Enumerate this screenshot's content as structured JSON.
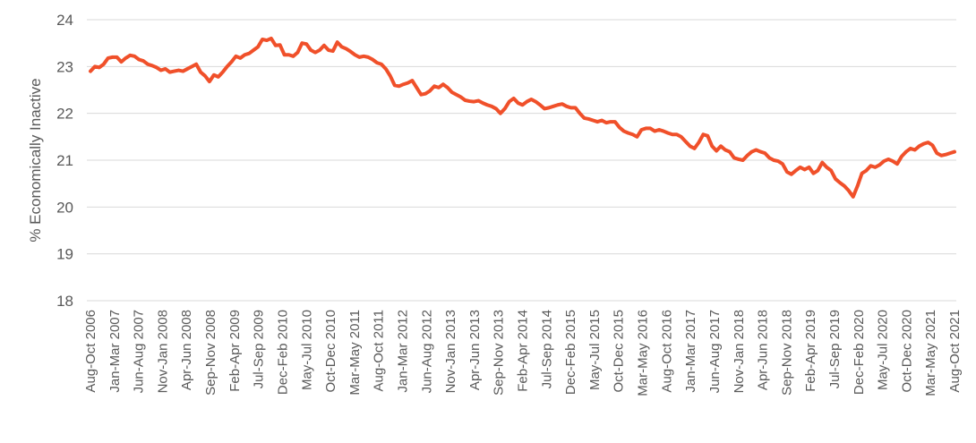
{
  "chart_data": {
    "type": "line",
    "title": "",
    "xlabel": "",
    "ylabel": "% Economically Inactive",
    "ylim": [
      18,
      24
    ],
    "yticks": [
      "18",
      "19",
      "20",
      "21",
      "22",
      "23",
      "24"
    ],
    "grid": true,
    "legend": "none",
    "line_color": "#f0502a",
    "x_tick_labels": [
      "Aug-Oct 2006",
      "Jan-Mar 2007",
      "Jun-Aug 2007",
      "Nov-Jan 2008",
      "Apr-Jun 2008",
      "Sep-Nov 2008",
      "Feb-Apr 2009",
      "Jul-Sep 2009",
      "Dec-Feb 2010",
      "May-Jul 2010",
      "Oct-Dec 2010",
      "Mar-May 2011",
      "Aug-Oct 2011",
      "Jan-Mar 2012",
      "Jun-Aug 2012",
      "Nov-Jan 2013",
      "Apr-Jun 2013",
      "Sep-Nov 2013",
      "Feb-Apr 2014",
      "Jul-Sep 2014",
      "Dec-Feb 2015",
      "May-Jul 2015",
      "Oct-Dec 2015",
      "Mar-May 2016",
      "Aug-Oct 2016",
      "Jan-Mar 2017",
      "Jun-Aug 2017",
      "Nov-Jan 2018",
      "Apr-Jun 2018",
      "Sep-Nov 2018",
      "Feb-Apr 2019",
      "Jul-Sep 2019",
      "Dec-Feb 2020",
      "May-Jul 2020",
      "Oct-Dec 2020",
      "Mar-May 2021",
      "Aug-Oct 2021"
    ],
    "series": [
      {
        "name": "",
        "values": [
          22.9,
          23.0,
          22.98,
          23.05,
          23.18,
          23.2,
          23.2,
          23.1,
          23.18,
          23.24,
          23.22,
          23.15,
          23.12,
          23.05,
          23.02,
          22.98,
          22.92,
          22.95,
          22.88,
          22.9,
          22.92,
          22.9,
          22.95,
          23.0,
          23.05,
          22.88,
          22.8,
          22.68,
          22.82,
          22.78,
          22.88,
          23.0,
          23.1,
          23.22,
          23.18,
          23.25,
          23.28,
          23.35,
          23.42,
          23.58,
          23.56,
          23.6,
          23.45,
          23.46,
          23.25,
          23.25,
          23.22,
          23.3,
          23.5,
          23.48,
          23.35,
          23.3,
          23.35,
          23.45,
          23.35,
          23.33,
          23.52,
          23.42,
          23.38,
          23.32,
          23.25,
          23.2,
          23.22,
          23.2,
          23.15,
          23.08,
          23.05,
          22.95,
          22.8,
          22.6,
          22.58,
          22.62,
          22.65,
          22.7,
          22.55,
          22.4,
          22.42,
          22.48,
          22.58,
          22.55,
          22.62,
          22.55,
          22.45,
          22.4,
          22.35,
          22.28,
          22.26,
          22.25,
          22.27,
          22.22,
          22.18,
          22.15,
          22.1,
          22.0,
          22.1,
          22.25,
          22.32,
          22.22,
          22.18,
          22.25,
          22.3,
          22.25,
          22.18,
          22.1,
          22.12,
          22.15,
          22.18,
          22.2,
          22.15,
          22.12,
          22.12,
          22.0,
          21.9,
          21.88,
          21.85,
          21.82,
          21.85,
          21.8,
          21.82,
          21.82,
          21.7,
          21.62,
          21.58,
          21.55,
          21.5,
          21.65,
          21.68,
          21.68,
          21.62,
          21.65,
          21.62,
          21.58,
          21.55,
          21.55,
          21.5,
          21.4,
          21.3,
          21.25,
          21.38,
          21.55,
          21.52,
          21.3,
          21.2,
          21.3,
          21.22,
          21.18,
          21.05,
          21.02,
          21.0,
          21.1,
          21.18,
          21.22,
          21.18,
          21.15,
          21.05,
          21.0,
          20.98,
          20.92,
          20.75,
          20.7,
          20.78,
          20.85,
          20.8,
          20.85,
          20.72,
          20.78,
          20.95,
          20.85,
          20.78,
          20.6,
          20.52,
          20.45,
          20.35,
          20.22,
          20.45,
          20.72,
          20.78,
          20.88,
          20.85,
          20.9,
          20.98,
          21.02,
          20.98,
          20.92,
          21.08,
          21.18,
          21.25,
          21.22,
          21.3,
          21.35,
          21.38,
          21.32,
          21.15,
          21.1,
          21.12,
          21.15,
          21.18
        ]
      }
    ]
  }
}
